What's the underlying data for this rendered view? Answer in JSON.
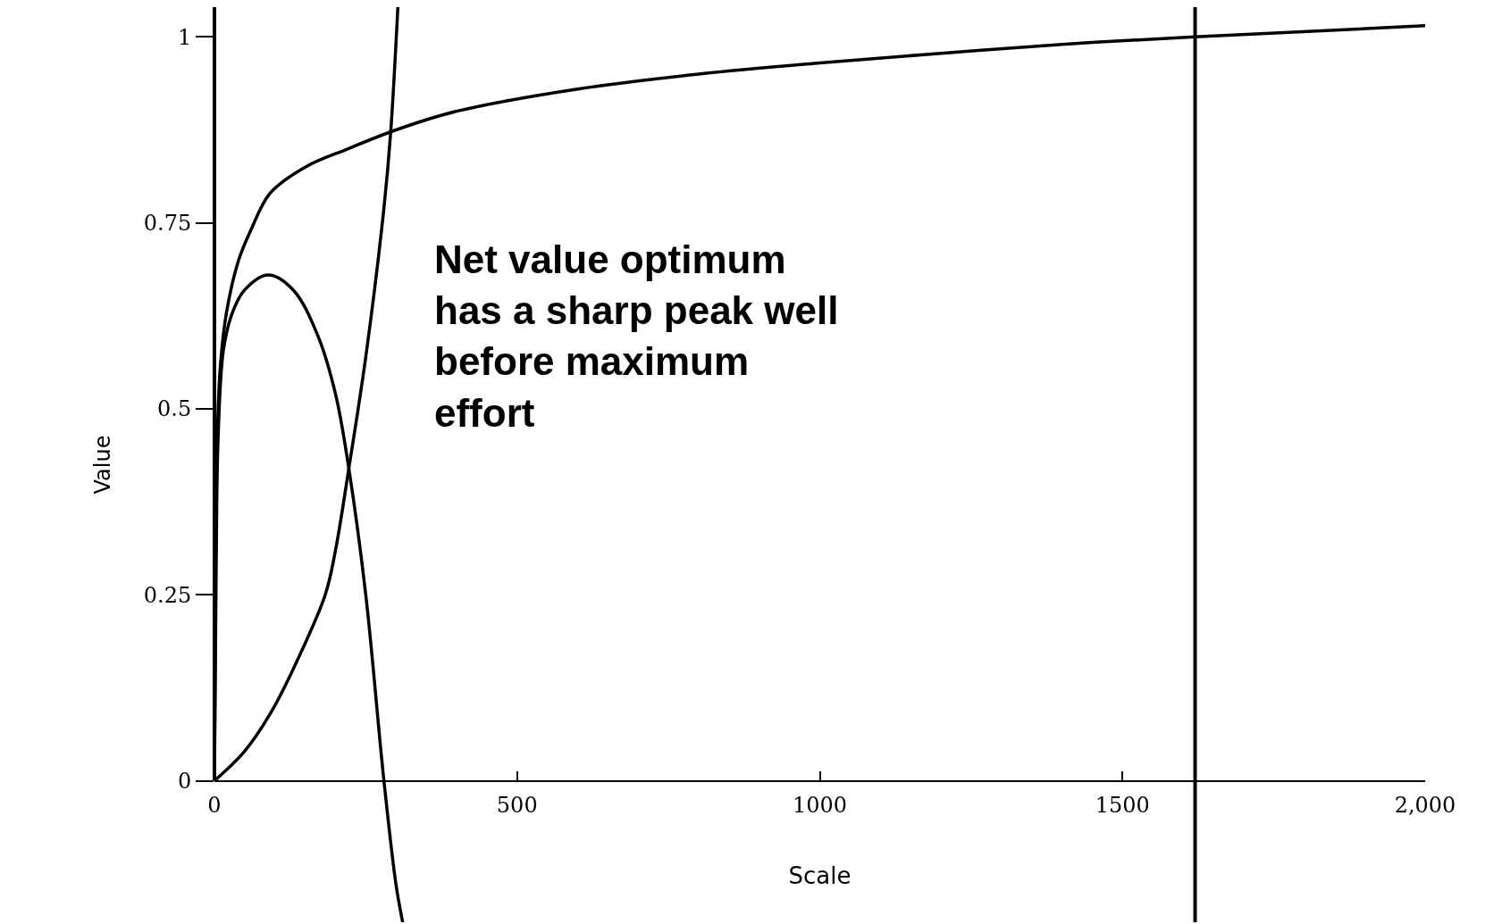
{
  "chart_data": {
    "type": "line",
    "xlabel": "Scale",
    "ylabel": "Value",
    "annotations": [
      "Net value optimum\nhas a sharp peak well\nbefore maximum\neffort"
    ],
    "series": [
      {
        "color": "#000000",
        "x": [
          0,
          2,
          5,
          10,
          20,
          40,
          60,
          92,
          150,
          222,
          300,
          400,
          600,
          800,
          1000,
          1200,
          1400,
          1620,
          2000
        ],
        "values": [
          0,
          0.3,
          0.47,
          0.56,
          0.63,
          0.7,
          0.74,
          0.79,
          0.825,
          0.85,
          0.875,
          0.9,
          0.93,
          0.95,
          0.965,
          0.978,
          0.99,
          1.0,
          1.015
        ]
      },
      {
        "color": "#000000",
        "x": [
          0,
          3,
          6,
          15,
          30,
          50,
          89,
          130,
          170,
          200,
          222,
          250,
          280,
          300,
          311
        ],
        "values": [
          0,
          0.3,
          0.46,
          0.58,
          0.63,
          0.66,
          0.68,
          0.66,
          0.6,
          0.52,
          0.42,
          0.25,
          0,
          -0.14,
          -0.19
        ]
      },
      {
        "color": "#000000",
        "x": [
          0,
          50,
          92,
          130,
          183,
          200,
          222,
          250,
          280,
          291,
          303
        ],
        "values": [
          0,
          0.04,
          0.09,
          0.15,
          0.25,
          0.31,
          0.42,
          0.57,
          0.77,
          0.87,
          1.04
        ]
      }
    ],
    "ref_lines": [
      {
        "axis": "x",
        "value": 1620,
        "color": "#000000"
      }
    ],
    "xlim": [
      0,
      2000
    ],
    "ylim": [
      -0.19,
      1.04
    ],
    "xticks": [
      0,
      500,
      1000,
      1500,
      {
        "value": 2000,
        "label": "2,000"
      }
    ],
    "yticks": [
      0,
      0.25,
      0.5,
      0.75,
      1
    ],
    "marker": "none",
    "line_style": "solid"
  }
}
